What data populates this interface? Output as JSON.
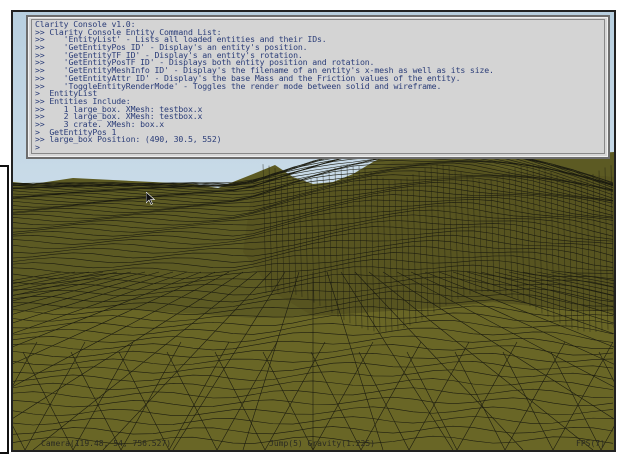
{
  "console": {
    "lines": [
      "Clarity Console v1.0:",
      ">> Clarity Console Entity Command List:",
      ">>    'EntityList' - Lists all loaded entities and their IDs.",
      ">>    'GetEntityPos ID' - Display's an entity's position.",
      ">>    'GetEntityTF ID' - Display's an entity's rotation.",
      ">>    'GetEntityPosTF ID' - Displays both entity position and rotation.",
      ">>    'GetEntityMeshInfo ID' - Display's the filename of an entity's x-mesh as well as its size.",
      ">>    'GetEntityAttr ID' - Display's the base Mass and the Friction values of the entity.",
      ">>    'ToggleEntityRenderMode' - Toggles the render mode between solid and wireframe.",
      ">  EntityList",
      ">> Entities Include:",
      ">>    1 large_box. XMesh: testbox.x",
      ">>    2 large_box. XMesh: testbox.x",
      ">>    3 crate. XMesh: box.x",
      ">  GetEntityPos 1",
      ">> large_box Position: (490, 30.5, 552)",
      ">"
    ]
  },
  "hud": {
    "camera": "Camera(119.48, 54, 756.527)",
    "jump_gravity": "Jump(5) Gravity(1.225)",
    "fps": "FPS(7)"
  },
  "colors": {
    "terrain": "#5d5a22",
    "wire": "#1c1c10",
    "sky": "#c9dbe8",
    "console_bg": "#d4d4d4",
    "console_text": "#2b3d78"
  },
  "icons": {
    "cursor": "mouse-pointer-icon"
  }
}
